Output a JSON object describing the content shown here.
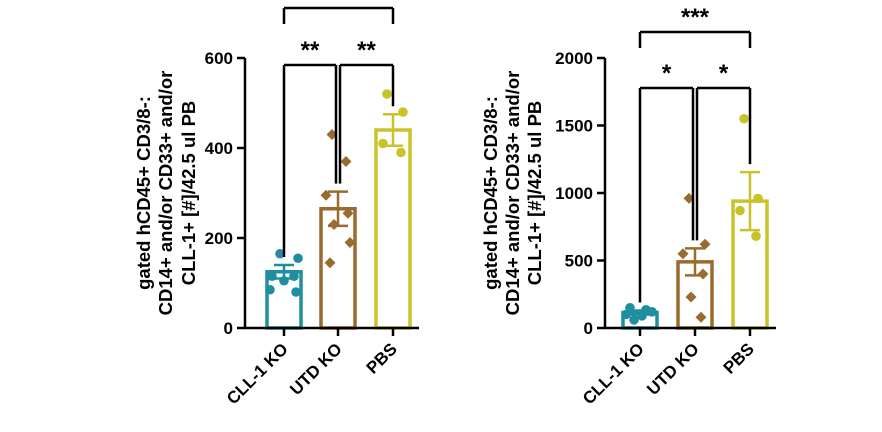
{
  "chart_data": [
    {
      "type": "bar",
      "title": "",
      "ylabel_lines": [
        "gated hCD45+ CD3/8-:",
        "CD14+ and/or  CD33+ and/or",
        "CLL-1+ [#]/42.5 ul PB"
      ],
      "xlabel": "",
      "ylim": [
        0,
        600
      ],
      "yticks": [
        0,
        200,
        400,
        600
      ],
      "categories": [
        "CLL-1 KO",
        "UTD KO",
        "PBS"
      ],
      "colors": [
        "#1f8fa0",
        "#9a6b2f",
        "#c9c32a"
      ],
      "markers": [
        "circle",
        "diamond",
        "circle"
      ],
      "values": [
        125,
        265,
        440
      ],
      "sem": [
        15,
        38,
        35
      ],
      "points": [
        [
          165,
          155,
          115,
          115,
          105,
          85,
          80
        ],
        [
          430,
          370,
          295,
          255,
          230,
          190,
          145
        ],
        [
          520,
          480,
          410,
          390
        ]
      ],
      "significance": [
        {
          "from": 0,
          "to": 1,
          "label": "**",
          "level": 1
        },
        {
          "from": 1,
          "to": 2,
          "label": "**",
          "level": 1
        },
        {
          "from": 0,
          "to": 2,
          "label": "",
          "level": 2
        }
      ]
    },
    {
      "type": "bar",
      "title": "",
      "ylabel_lines": [
        "gated hCD45+ CD3/8-:",
        "CD14+ and/or CD33+ and/or",
        "CLL-1+ [#]/42.5 ul PB"
      ],
      "xlabel": "",
      "ylim": [
        0,
        2000
      ],
      "yticks": [
        0,
        500,
        1000,
        1500,
        2000
      ],
      "categories": [
        "CLL-1 KO",
        "UTD KO",
        "PBS"
      ],
      "colors": [
        "#1f8fa0",
        "#9a6b2f",
        "#c9c32a"
      ],
      "markers": [
        "circle",
        "diamond",
        "circle"
      ],
      "values": [
        115,
        490,
        940
      ],
      "sem": [
        15,
        100,
        215
      ],
      "points": [
        [
          150,
          135,
          120,
          100,
          90,
          60
        ],
        [
          960,
          620,
          550,
          400,
          230,
          80
        ],
        [
          1550,
          960,
          870,
          680
        ]
      ],
      "significance": [
        {
          "from": 0,
          "to": 1,
          "label": "*",
          "level": 1
        },
        {
          "from": 1,
          "to": 2,
          "label": "*",
          "level": 1
        },
        {
          "from": 0,
          "to": 2,
          "label": "***",
          "level": 2
        }
      ]
    }
  ]
}
